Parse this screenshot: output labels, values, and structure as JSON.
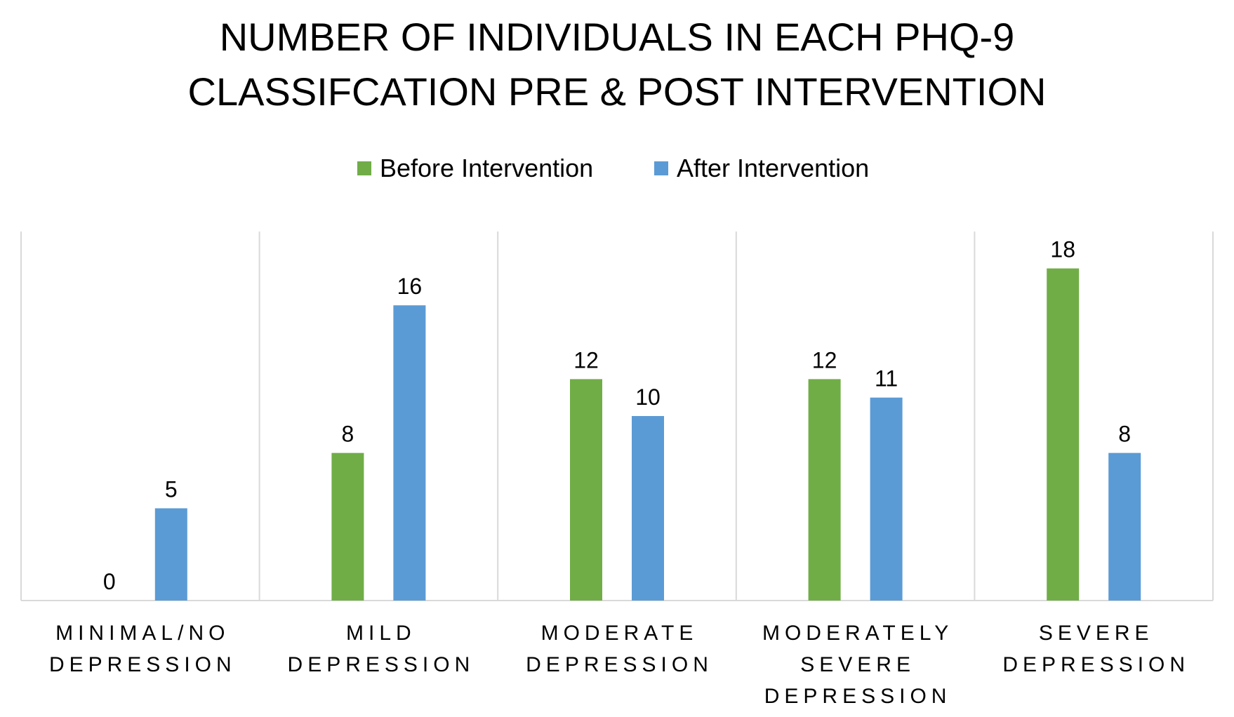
{
  "chart_data": {
    "type": "bar",
    "title_lines": [
      "NUMBER OF INDIVIDUALS IN EACH PHQ-9",
      "CLASSIFCATION PRE & POST INTERVENTION"
    ],
    "categories": [
      [
        "MINIMAL/NO",
        "DEPRESSION"
      ],
      [
        "MILD",
        "DEPRESSION"
      ],
      [
        "MODERATE",
        "DEPRESSION"
      ],
      [
        "MODERATELY",
        "SEVERE",
        "DEPRESSION"
      ],
      [
        "SEVERE",
        "DEPRESSION"
      ]
    ],
    "series": [
      {
        "name": "Before Intervention",
        "color": "#70AD47",
        "values": [
          0,
          8,
          12,
          12,
          18
        ]
      },
      {
        "name": "After Intervention",
        "color": "#5B9BD5",
        "values": [
          5,
          16,
          10,
          11,
          8
        ]
      }
    ],
    "ylim": [
      0,
      20
    ],
    "grid": false,
    "category_dividers": true,
    "data_labels": true,
    "legend_position": "top-center"
  }
}
